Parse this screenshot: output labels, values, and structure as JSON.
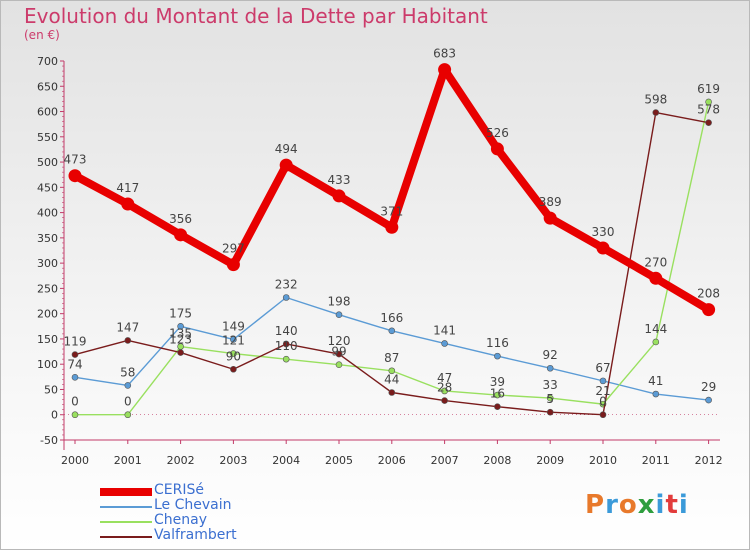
{
  "title": "Evolution du Montant de la Dette par Habitant",
  "subtitle": "(en €)",
  "brand": {
    "text": "Proxiti",
    "colors": [
      "#e8792b",
      "#3b9ad9",
      "#e8792b",
      "#2e9e3e",
      "#3b9ad9",
      "#e23b3b",
      "#3b9ad9"
    ]
  },
  "chart_data": {
    "type": "line",
    "x": [
      "2000",
      "2001",
      "2002",
      "2003",
      "2004",
      "2005",
      "2006",
      "2007",
      "2008",
      "2009",
      "2010",
      "2011",
      "2012"
    ],
    "ylim": [
      -50,
      700
    ],
    "yticks": [
      -50,
      0,
      50,
      100,
      150,
      200,
      250,
      300,
      350,
      400,
      450,
      500,
      550,
      600,
      650,
      700
    ],
    "grid": false,
    "legend_position": "bottom-left",
    "series": [
      {
        "name": "CERISé",
        "color": "#e80000",
        "values": [
          473,
          417,
          356,
          297,
          494,
          433,
          371,
          683,
          526,
          389,
          330,
          270,
          208
        ],
        "labels": [
          473,
          417,
          356,
          297,
          494,
          433,
          371,
          683,
          526,
          389,
          330,
          270,
          208
        ]
      },
      {
        "name": "Le Chevain",
        "color": "#5b9bd5",
        "values": [
          74,
          58,
          175,
          149,
          232,
          198,
          166,
          141,
          116,
          92,
          67,
          41,
          29
        ],
        "labels": [
          74,
          58,
          175,
          149,
          232,
          198,
          166,
          141,
          116,
          92,
          67,
          41,
          29
        ]
      },
      {
        "name": "Chenay",
        "color": "#99e05f",
        "values": [
          0,
          0,
          135,
          121,
          110,
          99,
          87,
          47,
          39,
          33,
          21,
          144,
          619
        ],
        "labels": [
          0,
          0,
          135,
          121,
          110,
          99,
          87,
          47,
          39,
          33,
          21,
          144,
          619
        ]
      },
      {
        "name": "Valframbert",
        "color": "#7a1c1c",
        "values": [
          119,
          147,
          123,
          90,
          140,
          120,
          44,
          28,
          16,
          5,
          0,
          598,
          578
        ],
        "labels": [
          119,
          147,
          123,
          90,
          140,
          120,
          44,
          28,
          16,
          5,
          0,
          598,
          578
        ]
      }
    ]
  }
}
